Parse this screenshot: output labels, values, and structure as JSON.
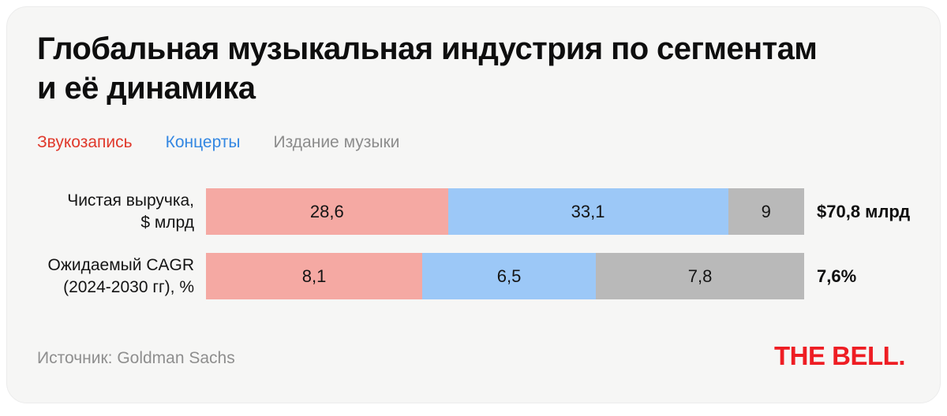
{
  "header": {
    "title_line1": "Глобальная музыкальная индустрия по сегментам",
    "title_line2": "и её динамика"
  },
  "legend": {
    "items": [
      {
        "label": "Звукозапись",
        "color": "#e0392c"
      },
      {
        "label": "Концерты",
        "color": "#3387e2"
      },
      {
        "label": "Издание музыки",
        "color": "#8c8c8c"
      }
    ]
  },
  "chart_data": {
    "type": "bar",
    "orientation": "horizontal",
    "stacked": true,
    "grid": false,
    "legend_position": "top",
    "title": "Глобальная музыкальная индустрия по сегментам и её динамика",
    "categories": [
      "Чистая выручка, $ млрд",
      "Ожидаемый CAGR (2024-2030 гг), %"
    ],
    "category_lines": [
      [
        "Чистая выручка,",
        "$ млрд"
      ],
      [
        "Ожидаемый CAGR",
        "(2024-2030 гг), %"
      ]
    ],
    "series": [
      {
        "name": "Звукозапись",
        "color": "#f5a9a3",
        "values": [
          28.6,
          8.1
        ]
      },
      {
        "name": "Концерты",
        "color": "#9cc8f7",
        "values": [
          33.1,
          6.5
        ]
      },
      {
        "name": "Издание музыки",
        "color": "#b9b9b9",
        "values": [
          9,
          7.8
        ]
      }
    ],
    "value_labels": [
      [
        "28,6",
        "33,1",
        "9"
      ],
      [
        "8,1",
        "6,5",
        "7,8"
      ]
    ],
    "totals": [
      "$70,8 млрд",
      "7,6%"
    ]
  },
  "footer": {
    "source": "Источник: Goldman Sachs",
    "logo": "THE BELL.",
    "logo_color": "#ee1d23"
  }
}
